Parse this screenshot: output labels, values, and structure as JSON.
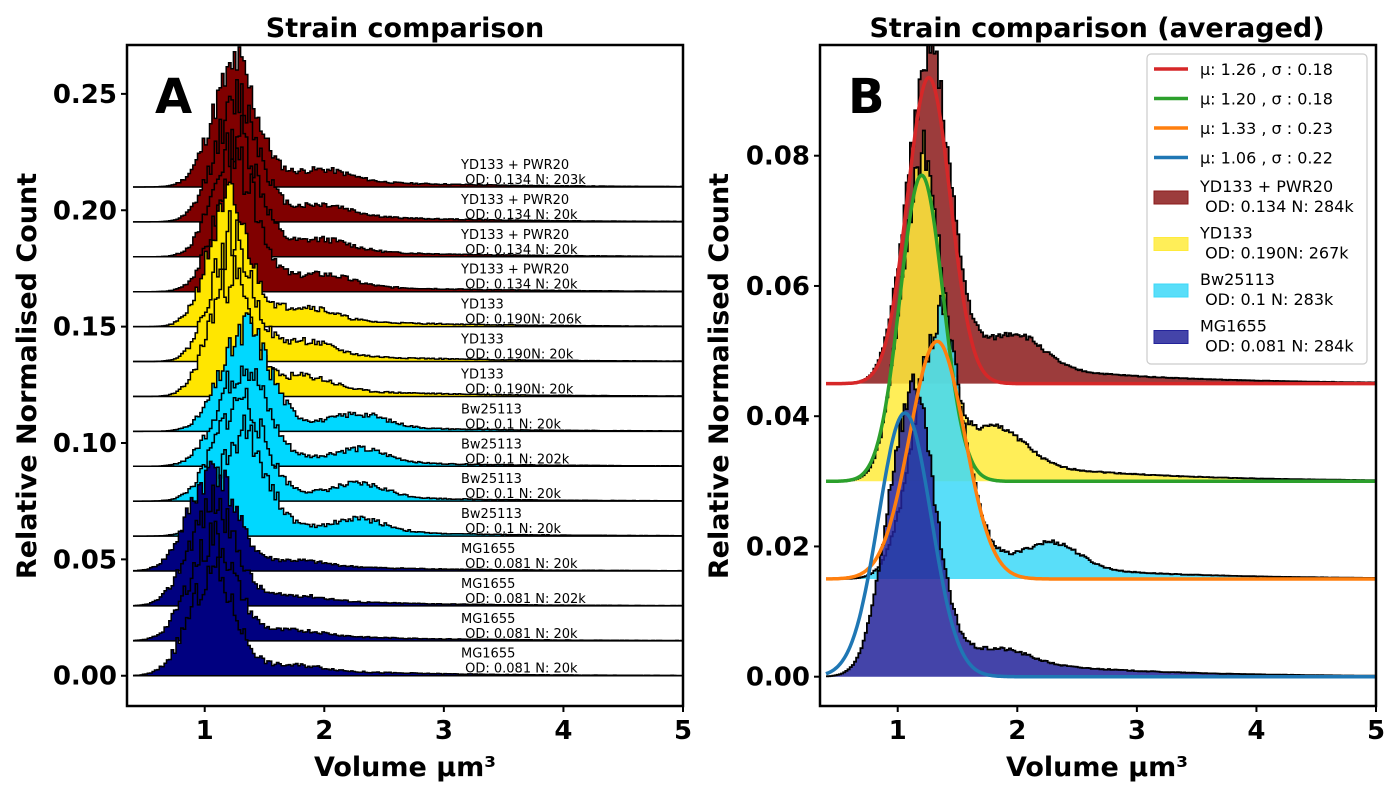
{
  "colors": {
    "dark_red": "#800000",
    "yellow": "#ffe600",
    "cyan": "#00d8ff",
    "navy": "#000080",
    "fit_red": "#d62728",
    "fit_green": "#2ca02c",
    "fit_orange": "#ff7f0e",
    "fit_blue": "#1f77b4",
    "avg_dark_red": "#8b1a1a",
    "avg_yellow": "#ffeb3b",
    "avg_cyan": "#3cd8f8",
    "avg_navy": "#23239a"
  },
  "chart_data": [
    {
      "type": "area",
      "panel": "A",
      "title": "Strain comparison",
      "xlabel": "Volume µm³",
      "ylabel": "Relative Normalised Count",
      "xlim": [
        0.35,
        5.0
      ],
      "ylim": [
        -0.013,
        0.271
      ],
      "xticks": [
        1,
        2,
        3,
        4,
        5
      ],
      "xtick_labels": [
        "1",
        "2",
        "3",
        "4",
        "5"
      ],
      "yticks": [
        0.0,
        0.05,
        0.1,
        0.15,
        0.2,
        0.25
      ],
      "ytick_labels": [
        "0.00",
        "0.05",
        "0.10",
        "0.15",
        "0.20",
        "0.25"
      ],
      "grid": false,
      "series": [
        {
          "name": "YD133 + PWR20",
          "annotation": "YD133 + PWR20\n OD: 0.134 N: 203k",
          "strain": "pwr",
          "offset": 0.21,
          "peak_x": 1.24,
          "peak_h": 0.049,
          "sigma": 0.18,
          "bump_x": 2.0,
          "bump_h": 0.0045,
          "seed": 11
        },
        {
          "name": "YD133 + PWR20",
          "annotation": "YD133 + PWR20\n OD: 0.134 N: 20k",
          "strain": "pwr",
          "offset": 0.195,
          "peak_x": 1.26,
          "peak_h": 0.049,
          "sigma": 0.18,
          "bump_x": 2.0,
          "bump_h": 0.0045,
          "seed": 12
        },
        {
          "name": "YD133 + PWR20",
          "annotation": "YD133 + PWR20\n OD: 0.134 N: 20k",
          "strain": "pwr",
          "offset": 0.18,
          "peak_x": 1.26,
          "peak_h": 0.049,
          "sigma": 0.18,
          "bump_x": 2.0,
          "bump_h": 0.0045,
          "seed": 13
        },
        {
          "name": "YD133 + PWR20",
          "annotation": "YD133 + PWR20\n OD: 0.134 N: 20k",
          "strain": "pwr",
          "offset": 0.165,
          "peak_x": 1.26,
          "peak_h": 0.049,
          "sigma": 0.18,
          "bump_x": 2.0,
          "bump_h": 0.0045,
          "seed": 14
        },
        {
          "name": "YD133",
          "annotation": "YD133\n OD: 0.190N: 206k",
          "strain": "yd",
          "offset": 0.15,
          "peak_x": 1.19,
          "peak_h": 0.049,
          "sigma": 0.17,
          "bump_x": 1.85,
          "bump_h": 0.0055,
          "seed": 21
        },
        {
          "name": "YD133",
          "annotation": "YD133\n OD: 0.190N: 20k",
          "strain": "yd",
          "offset": 0.135,
          "peak_x": 1.21,
          "peak_h": 0.049,
          "sigma": 0.17,
          "bump_x": 1.85,
          "bump_h": 0.0055,
          "seed": 22
        },
        {
          "name": "YD133",
          "annotation": "YD133\n OD: 0.190N: 20k",
          "strain": "yd",
          "offset": 0.12,
          "peak_x": 1.2,
          "peak_h": 0.049,
          "sigma": 0.17,
          "bump_x": 1.85,
          "bump_h": 0.0055,
          "seed": 23
        },
        {
          "name": "Bw25113",
          "annotation": "Bw25113\n OD: 0.1 N: 20k",
          "strain": "bw",
          "offset": 0.105,
          "peak_x": 1.33,
          "peak_h": 0.041,
          "sigma": 0.2,
          "bump_x": 2.3,
          "bump_h": 0.0055,
          "seed": 31
        },
        {
          "name": "Bw25113",
          "annotation": "Bw25113\n OD: 0.1 N: 202k",
          "strain": "bw",
          "offset": 0.09,
          "peak_x": 1.3,
          "peak_h": 0.041,
          "sigma": 0.2,
          "bump_x": 2.3,
          "bump_h": 0.0055,
          "seed": 32
        },
        {
          "name": "Bw25113",
          "annotation": "Bw25113\n OD: 0.1 N: 20k",
          "strain": "bw",
          "offset": 0.075,
          "peak_x": 1.28,
          "peak_h": 0.041,
          "sigma": 0.2,
          "bump_x": 2.3,
          "bump_h": 0.0055,
          "seed": 33
        },
        {
          "name": "Bw25113",
          "annotation": "Bw25113\n OD: 0.1 N: 20k",
          "strain": "bw",
          "offset": 0.06,
          "peak_x": 1.3,
          "peak_h": 0.041,
          "sigma": 0.2,
          "bump_x": 2.3,
          "bump_h": 0.0055,
          "seed": 34
        },
        {
          "name": "MG1655",
          "annotation": "MG1655\n OD: 0.081 N: 20k",
          "strain": "mg",
          "offset": 0.045,
          "peak_x": 1.05,
          "peak_h": 0.041,
          "sigma": 0.19,
          "bump_x": 1.8,
          "bump_h": 0.002,
          "seed": 41
        },
        {
          "name": "MG1655",
          "annotation": "MG1655\n OD: 0.081 N: 202k",
          "strain": "mg",
          "offset": 0.03,
          "peak_x": 1.05,
          "peak_h": 0.041,
          "sigma": 0.19,
          "bump_x": 1.8,
          "bump_h": 0.002,
          "seed": 42
        },
        {
          "name": "MG1655",
          "annotation": "MG1655\n OD: 0.081 N: 20k",
          "strain": "mg",
          "offset": 0.015,
          "peak_x": 1.05,
          "peak_h": 0.041,
          "sigma": 0.19,
          "bump_x": 1.8,
          "bump_h": 0.002,
          "seed": 43
        },
        {
          "name": "MG1655",
          "annotation": "MG1655\n OD: 0.081 N: 20k",
          "strain": "mg",
          "offset": 0.0,
          "peak_x": 1.05,
          "peak_h": 0.041,
          "sigma": 0.19,
          "bump_x": 1.8,
          "bump_h": 0.002,
          "seed": 44
        }
      ]
    },
    {
      "type": "area",
      "panel": "B",
      "title": "Strain comparison (averaged)",
      "xlabel": "Volume µm³",
      "ylabel": "Relative Normalised Count",
      "xlim": [
        0.35,
        5.0
      ],
      "ylim": [
        -0.0045,
        0.097
      ],
      "xticks": [
        1,
        2,
        3,
        4,
        5
      ],
      "xtick_labels": [
        "1",
        "2",
        "3",
        "4",
        "5"
      ],
      "yticks": [
        0.0,
        0.02,
        0.04,
        0.06,
        0.08
      ],
      "ytick_labels": [
        "0.00",
        "0.02",
        "0.04",
        "0.06",
        "0.08"
      ],
      "grid": false,
      "legend_position": "top-right",
      "histograms": [
        {
          "name": "YD133 + PWR20\n OD: 0.134 N: 284k",
          "strain": "pwr",
          "offset": 0.045,
          "peak_x": 1.25,
          "peak_h": 0.0475,
          "sigma": 0.18,
          "bump_x": 2.0,
          "bump_h": 0.0048,
          "seed": 51
        },
        {
          "name": "YD133\n OD: 0.190N: 267k",
          "strain": "yd",
          "offset": 0.03,
          "peak_x": 1.19,
          "peak_h": 0.047,
          "sigma": 0.17,
          "bump_x": 1.85,
          "bump_h": 0.0052,
          "seed": 52
        },
        {
          "name": "Bw25113\n OD: 0.1 N: 283k",
          "strain": "bw",
          "offset": 0.015,
          "peak_x": 1.33,
          "peak_h": 0.038,
          "sigma": 0.2,
          "bump_x": 2.3,
          "bump_h": 0.0038,
          "seed": 53
        },
        {
          "name": "MG1655\n OD: 0.081 N: 284k",
          "strain": "mg",
          "offset": 0.0,
          "peak_x": 1.1,
          "peak_h": 0.042,
          "sigma": 0.19,
          "bump_x": 1.9,
          "bump_h": 0.0018,
          "seed": 54
        }
      ],
      "fits": [
        {
          "label": "μ: 1.26 , σ : 0.18",
          "mu": 1.26,
          "sigma": 0.18,
          "amplitude": 0.047,
          "offset": 0.045,
          "color_key": "fit_red"
        },
        {
          "label": "μ: 1.20 , σ : 0.18",
          "mu": 1.2,
          "sigma": 0.18,
          "amplitude": 0.047,
          "offset": 0.03,
          "color_key": "fit_green"
        },
        {
          "label": "μ: 1.33 , σ : 0.23",
          "mu": 1.33,
          "sigma": 0.23,
          "amplitude": 0.0365,
          "offset": 0.015,
          "color_key": "fit_orange"
        },
        {
          "label": "μ: 1.06 , σ : 0.22",
          "mu": 1.06,
          "sigma": 0.22,
          "amplitude": 0.0405,
          "offset": 0.0,
          "color_key": "fit_blue"
        }
      ]
    }
  ]
}
